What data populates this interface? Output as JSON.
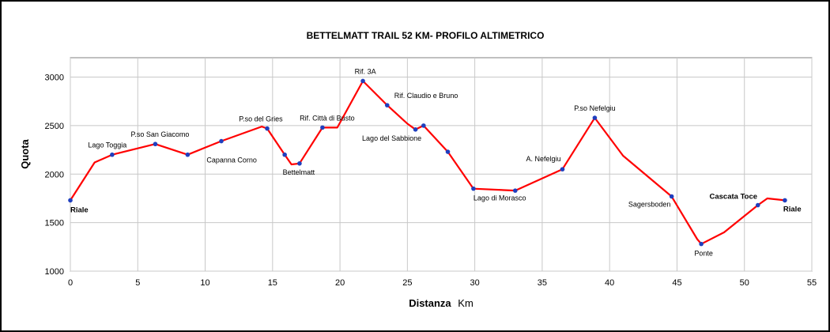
{
  "chart_data": {
    "type": "line",
    "title": "BETTELMATT TRAIL 52 KM- PROFILO ALTIMETRICO",
    "xlabel": "Distanza",
    "xlabel_unit": "Km",
    "ylabel": "Quota",
    "xlim": [
      0,
      55
    ],
    "ylim": [
      1000,
      3200
    ],
    "x_ticks": [
      0,
      5,
      10,
      15,
      20,
      25,
      30,
      35,
      40,
      45,
      50,
      55
    ],
    "y_ticks": [
      1000,
      1500,
      2000,
      2500,
      3000
    ],
    "grid": true,
    "line_color": "#ff0000",
    "marker_color": "#1f3fbf",
    "series": [
      {
        "x": [
          0,
          1.8,
          3.1,
          6.3,
          8.7,
          11.2,
          14.2,
          14.6,
          15.9,
          16.4,
          17.0,
          18.7,
          19.8,
          21.7,
          23.5,
          25.0,
          25.6,
          26.2,
          28.0,
          29.9,
          33.0,
          36.5,
          38.9,
          41.0,
          44.6,
          46.5,
          46.8,
          48.5,
          51.0,
          51.7,
          53.0
        ],
        "y": [
          1730,
          2120,
          2200,
          2310,
          2200,
          2340,
          2490,
          2470,
          2200,
          2100,
          2110,
          2480,
          2480,
          2960,
          2710,
          2520,
          2460,
          2500,
          2230,
          1850,
          1830,
          2050,
          2580,
          2190,
          1770,
          1330,
          1280,
          1400,
          1680,
          1750,
          1730
        ]
      }
    ],
    "markers": [
      {
        "x": 0,
        "y": 1730,
        "label": "Riale",
        "bold": true
      },
      {
        "x": 3.1,
        "y": 2200,
        "label": "Lago Toggia",
        "bold": false
      },
      {
        "x": 6.3,
        "y": 2310,
        "label": "P.so San Giacomo",
        "bold": false
      },
      {
        "x": 8.7,
        "y": 2200,
        "label": "Capanna Corno",
        "bold": false
      },
      {
        "x": 11.2,
        "y": 2340,
        "label": "",
        "bold": false
      },
      {
        "x": 14.6,
        "y": 2470,
        "label": "P.so del Gries",
        "bold": false
      },
      {
        "x": 15.9,
        "y": 2200,
        "label": "",
        "bold": false
      },
      {
        "x": 17.0,
        "y": 2110,
        "label": "Bettelmatt",
        "bold": false
      },
      {
        "x": 18.7,
        "y": 2480,
        "label": "Rif. Città di Busto",
        "bold": false
      },
      {
        "x": 21.7,
        "y": 2960,
        "label": "Rif. 3A",
        "bold": false
      },
      {
        "x": 23.5,
        "y": 2710,
        "label": "Rif. Claudio e Bruno",
        "bold": false
      },
      {
        "x": 25.6,
        "y": 2460,
        "label": "Lago del Sabbione",
        "bold": false
      },
      {
        "x": 26.2,
        "y": 2500,
        "label": "",
        "bold": false
      },
      {
        "x": 28.0,
        "y": 2230,
        "label": "",
        "bold": false
      },
      {
        "x": 29.9,
        "y": 1850,
        "label": "Lago di Morasco",
        "bold": false
      },
      {
        "x": 33.0,
        "y": 1830,
        "label": "",
        "bold": false
      },
      {
        "x": 36.5,
        "y": 2050,
        "label": "A. Nefelgiu",
        "bold": false
      },
      {
        "x": 38.9,
        "y": 2580,
        "label": "P.so Nefelgiu",
        "bold": false
      },
      {
        "x": 44.6,
        "y": 1770,
        "label": "Sagersboden",
        "bold": false
      },
      {
        "x": 46.8,
        "y": 1280,
        "label": "Ponte",
        "bold": false
      },
      {
        "x": 51.0,
        "y": 1680,
        "label": "Cascata Toce",
        "bold": true
      },
      {
        "x": 53.0,
        "y": 1730,
        "label": "Riale",
        "bold": true
      }
    ]
  }
}
